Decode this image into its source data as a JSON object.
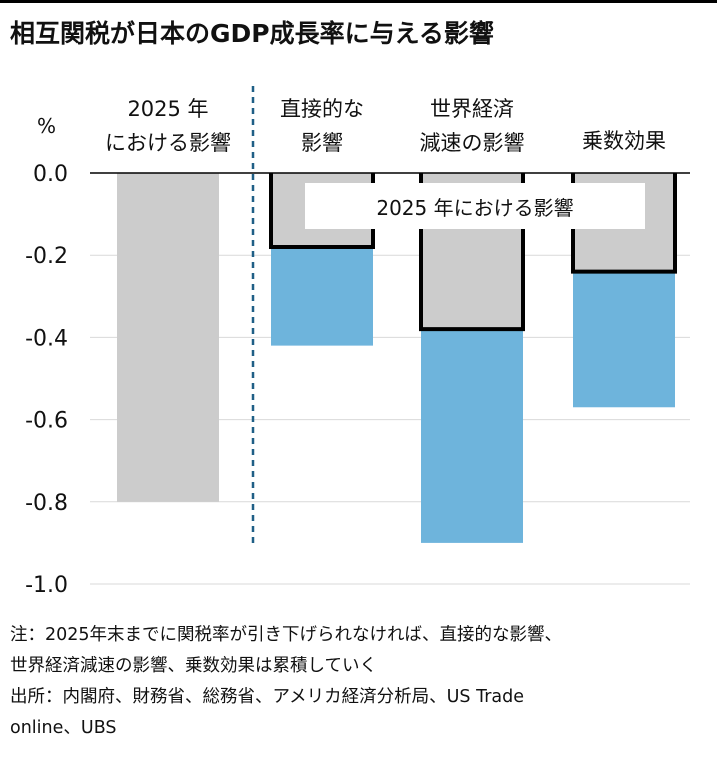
{
  "title": "相互関税が日本のGDP成長率に与える影響",
  "chart_data": {
    "type": "bar",
    "unit_label": "%",
    "ylim": [
      -1.0,
      0.0
    ],
    "yticks": [
      "0.0",
      "-0.2",
      "-0.4",
      "-0.6",
      "-0.8",
      "-1.0"
    ],
    "ytick_values": [
      0.0,
      -0.2,
      -0.4,
      -0.6,
      -0.8,
      -1.0
    ],
    "grid": true,
    "categories": [
      "2025 年における影響",
      "直接的な影響",
      "世界経済減速の影響",
      "乗数効果"
    ],
    "category_label_lines": [
      [
        "2025 年",
        "における影響"
      ],
      [
        "直接的な",
        "影響"
      ],
      [
        "世界経済",
        "減速の影響"
      ],
      [
        "乗数効果"
      ]
    ],
    "series": [
      {
        "name": "2025 年における影響",
        "color": "#cccccc",
        "values": [
          -0.8,
          -0.18,
          -0.38,
          -0.24
        ]
      },
      {
        "name": "",
        "color": "#6eb4dc",
        "values": [
          null,
          -0.24,
          -0.52,
          -0.33
        ]
      }
    ],
    "annotation": "2025 年における影響",
    "colors": {
      "gray": "#cccccc",
      "blue": "#6eb4dc",
      "divider": "#1f5f86",
      "outline": "#000000"
    }
  },
  "notes": {
    "line1": "注：2025年末までに関税率が引き下げられなければ、直接的な影響、",
    "line2": "世界経済減速の影響、乗数効果は累積していく",
    "line3": "出所：内閣府、財務省、総務省、アメリカ経済分析局、US Trade",
    "line4": "online、UBS"
  }
}
